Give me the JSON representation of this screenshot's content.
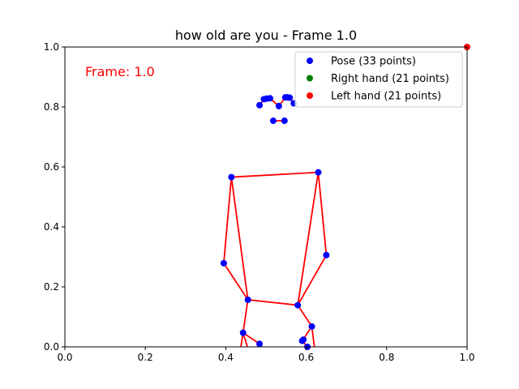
{
  "chart_data": {
    "type": "scatter",
    "title": "how old are you - Frame 1.0",
    "xlabel": "",
    "ylabel": "",
    "xlim": [
      0,
      1
    ],
    "ylim": [
      0,
      1
    ],
    "xticks": [
      "0.0",
      "0.2",
      "0.4",
      "0.6",
      "0.8",
      "1.0"
    ],
    "yticks": [
      "0.0",
      "0.2",
      "0.4",
      "0.6",
      "0.8",
      "1.0"
    ],
    "xtick_values": [
      0,
      0.2,
      0.4,
      0.6,
      0.8,
      1.0
    ],
    "ytick_values": [
      0,
      0.2,
      0.4,
      0.6,
      0.8,
      1.0
    ],
    "grid": false,
    "legend_position": "top-right",
    "annotation": {
      "text": "Frame: 1.0",
      "x": 0.05,
      "y": 0.915,
      "color": "#ff0000"
    },
    "connection_color": "#ff0000",
    "series": [
      {
        "name": "Pose (33 points)",
        "color": "#0000ff",
        "points": [
          [
            0.532,
            0.803
          ],
          [
            0.51,
            0.829
          ],
          [
            0.502,
            0.828
          ],
          [
            0.495,
            0.826
          ],
          [
            0.548,
            0.832
          ],
          [
            0.553,
            0.832
          ],
          [
            0.559,
            0.831
          ],
          [
            0.484,
            0.806
          ],
          [
            0.569,
            0.812
          ],
          [
            0.518,
            0.754
          ],
          [
            0.546,
            0.754
          ],
          [
            0.414,
            0.566
          ],
          [
            0.63,
            0.582
          ],
          [
            0.395,
            0.279
          ],
          [
            0.65,
            0.306
          ],
          [
            0.455,
            0.157
          ],
          [
            0.579,
            0.139
          ],
          [
            0.443,
            0.047
          ],
          [
            0.614,
            0.068
          ],
          [
            0.484,
            0.01
          ],
          [
            0.59,
            0.02
          ],
          [
            0.593,
            0.024
          ],
          [
            0.603,
            0.0
          ]
        ],
        "connections": [
          [
            0,
            1
          ],
          [
            1,
            2
          ],
          [
            2,
            3
          ],
          [
            3,
            7
          ],
          [
            0,
            4
          ],
          [
            4,
            5
          ],
          [
            5,
            6
          ],
          [
            6,
            8
          ],
          [
            9,
            10
          ],
          [
            11,
            12
          ],
          [
            11,
            13
          ],
          [
            13,
            15
          ],
          [
            12,
            14
          ],
          [
            14,
            16
          ],
          [
            11,
            15
          ],
          [
            12,
            16
          ],
          [
            15,
            16
          ],
          [
            15,
            17
          ],
          [
            16,
            18
          ],
          [
            17,
            19
          ],
          [
            18,
            20
          ],
          [
            20,
            22
          ]
        ],
        "offscreen_segments": [
          [
            [
              0.443,
              0.047
            ],
            [
              0.432,
              -0.05
            ]
          ],
          [
            [
              0.443,
              0.047
            ],
            [
              0.465,
              -0.05
            ]
          ],
          [
            [
              0.614,
              0.068
            ],
            [
              0.625,
              -0.05
            ]
          ]
        ]
      },
      {
        "name": "Right hand (21 points)",
        "color": "#008000",
        "points": []
      },
      {
        "name": "Left hand (21 points)",
        "color": "#ff0000",
        "points": [
          [
            1.0,
            1.0
          ]
        ]
      }
    ]
  }
}
